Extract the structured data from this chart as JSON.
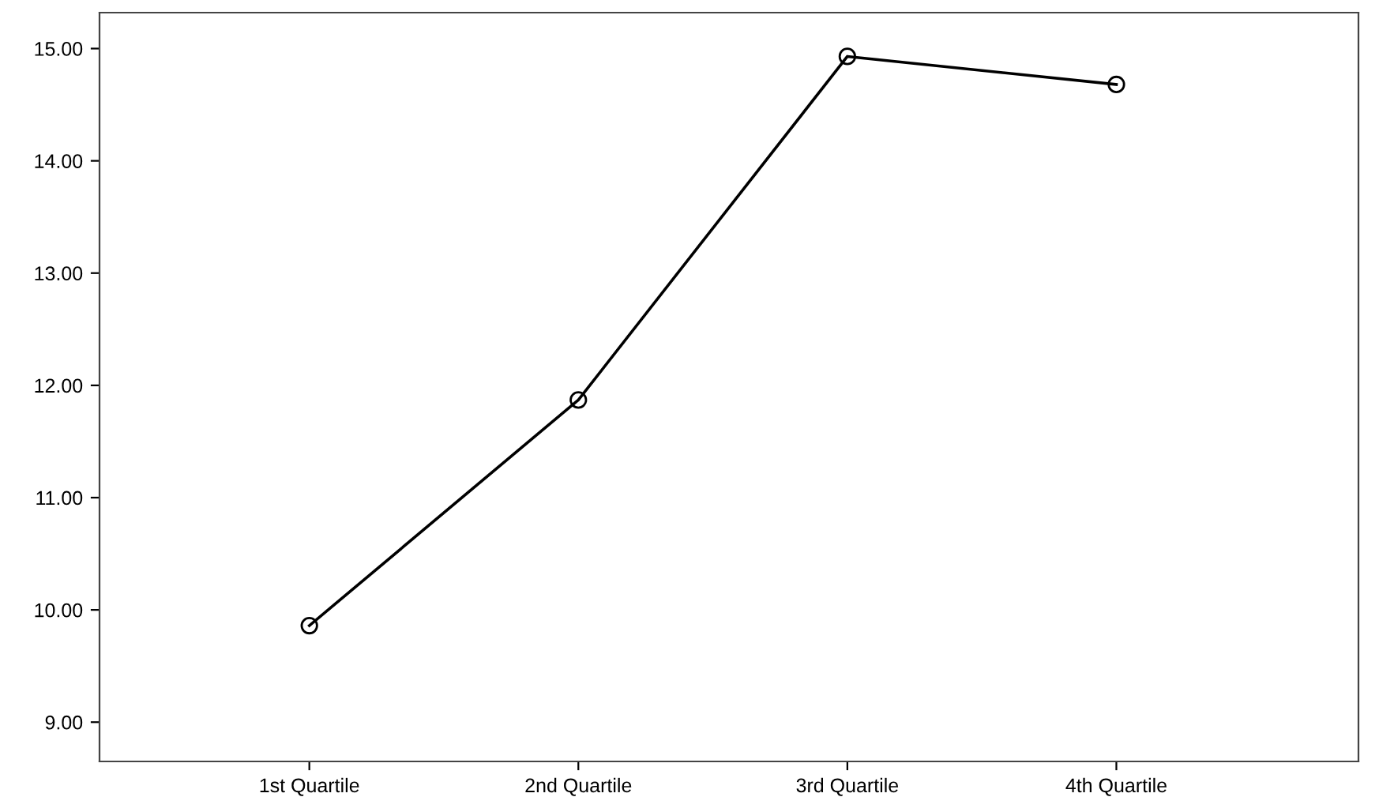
{
  "chart_data": {
    "type": "line",
    "categories": [
      "1st Quartile",
      "2nd Quartile",
      "3rd Quartile",
      "4th Quartile"
    ],
    "series": [
      {
        "color": "#000000",
        "values": [
          9.86,
          11.87,
          14.93,
          14.68
        ]
      }
    ],
    "ylim": [
      8.65,
      15.32
    ],
    "yticks": [
      {
        "value": 9,
        "label": "9.00"
      },
      {
        "value": 10,
        "label": "10.00"
      },
      {
        "value": 11,
        "label": "11.00"
      },
      {
        "value": 12,
        "label": "12.00"
      },
      {
        "value": 13,
        "label": "13.00"
      },
      {
        "value": 14,
        "label": "14.00"
      },
      {
        "value": 15,
        "label": "15.00"
      }
    ],
    "marker": "circle",
    "line_style": "solid",
    "grid": false,
    "legend": false
  }
}
